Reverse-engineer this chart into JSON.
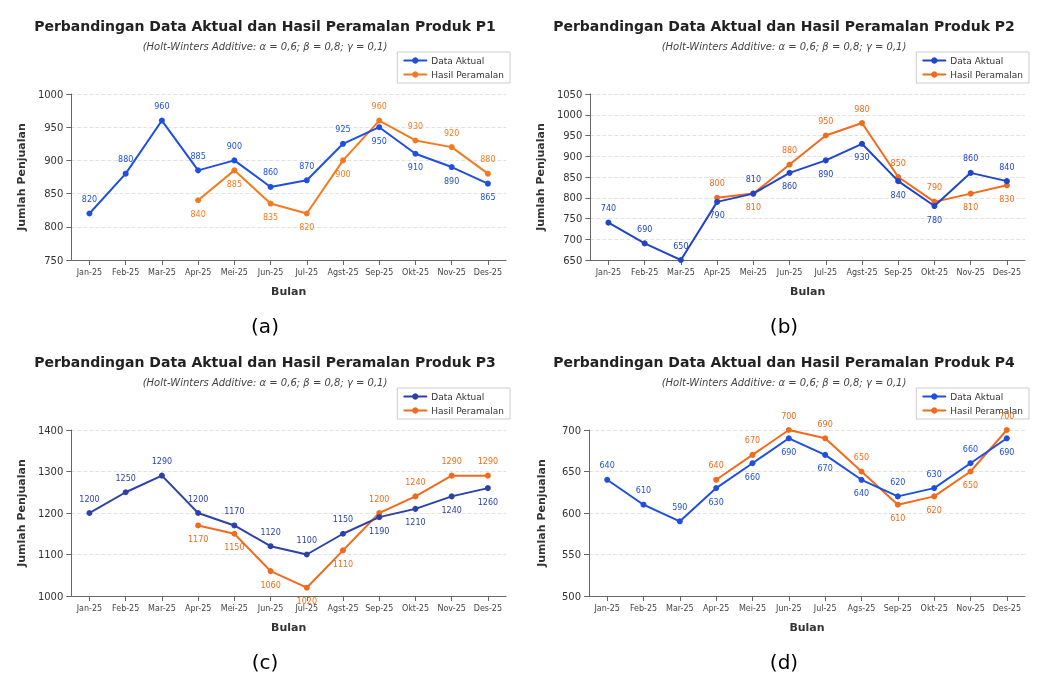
{
  "chart_data": [
    {
      "type": "line",
      "title": "Perbandingan Data Aktual dan Hasil Peramalan Produk P1",
      "subtitle": "(Holt-Winters Additive: α = 0,6; β = 0,8; γ = 0,1)",
      "xlabel": "Bulan",
      "ylabel": "Jumlah Penjualan",
      "annotations": [
        "(a)"
      ],
      "categories": [
        "Jan-25",
        "Feb-25",
        "Mar-25",
        "Apr-25",
        "Mei-25",
        "Jun-25",
        "Jul-25",
        "Agst-25",
        "Sep-25",
        "Okt-25",
        "Nov-25",
        "Des-25"
      ],
      "series": [
        {
          "name": "Data Aktual",
          "color": "#1f4fe0",
          "values": [
            820,
            880,
            960,
            885,
            900,
            860,
            870,
            925,
            950,
            910,
            890,
            865
          ]
        },
        {
          "name": "Hasil Peramalan",
          "color": "#f57a1f",
          "values": [
            null,
            null,
            null,
            840,
            885,
            835,
            820,
            900,
            960,
            930,
            920,
            880
          ]
        }
      ],
      "ylim": [
        750,
        1000
      ],
      "yticks": [
        750,
        800,
        850,
        900,
        950,
        1000
      ],
      "grid": "y",
      "legend": "top right",
      "marker": "circle",
      "line_style": "solid",
      "data_labels": true
    },
    {
      "type": "line",
      "title": "Perbandingan Data Aktual dan Hasil Peramalan Produk P2",
      "subtitle": "(Holt-Winters Additive: α = 0,6; β = 0,8; γ = 0,1)",
      "xlabel": "Bulan",
      "ylabel": "Jumlah Penjualan",
      "annotations": [
        "(b)"
      ],
      "categories": [
        "Jan-25",
        "Feb-25",
        "Mar-25",
        "Apr-25",
        "Mei-25",
        "Jun-25",
        "Jul-25",
        "Agst-25",
        "Sep-25",
        "Okt-25",
        "Nov-25",
        "Des-25"
      ],
      "series": [
        {
          "name": "Data Aktual",
          "color": "#1f45c8",
          "values": [
            740,
            690,
            650,
            790,
            810,
            860,
            890,
            930,
            840,
            780,
            860,
            840
          ]
        },
        {
          "name": "Hasil Peramalan",
          "color": "#f26a1b",
          "values": [
            null,
            null,
            null,
            800,
            810,
            880,
            950,
            980,
            850,
            790,
            810,
            830
          ]
        }
      ],
      "ylim": [
        650,
        1050
      ],
      "yticks": [
        650,
        700,
        750,
        800,
        850,
        900,
        950,
        1000,
        1050
      ],
      "grid": "y",
      "legend": "top right",
      "marker": "circle",
      "line_style": "solid",
      "data_labels": true
    },
    {
      "type": "line",
      "title": "Perbandingan Data Aktual dan Hasil Peramalan Produk P3",
      "subtitle": "(Holt-Winters Additive: α = 0,6; β = 0,8; γ = 0,1)",
      "xlabel": "Bulan",
      "ylabel": "Jumlah Penjualan",
      "annotations": [
        "(c)"
      ],
      "categories": [
        "Jan-25",
        "Feb-25",
        "Mar-25",
        "Apr-25",
        "Mei-25",
        "Jun-25",
        "Jul-25",
        "Agst-25",
        "Sep-25",
        "Okt-25",
        "Nov-25",
        "Des-25"
      ],
      "series": [
        {
          "name": "Data Aktual",
          "color": "#2d42a8",
          "values": [
            1200,
            1250,
            1290,
            1200,
            1170,
            1120,
            1100,
            1150,
            1190,
            1210,
            1240,
            1260
          ]
        },
        {
          "name": "Hasil Peramalan",
          "color": "#f26a1b",
          "values": [
            null,
            null,
            null,
            1170,
            1150,
            1060,
            1020,
            1110,
            1200,
            1240,
            1290,
            1290
          ]
        }
      ],
      "ylim": [
        1000,
        1400
      ],
      "yticks": [
        1000,
        1100,
        1200,
        1300,
        1400
      ],
      "grid": "y",
      "legend": "top right",
      "marker": "circle",
      "line_style": "solid",
      "data_labels": true
    },
    {
      "type": "line",
      "title": "Perbandingan Data Aktual dan Hasil Peramalan Produk P4",
      "subtitle": "(Holt-Winters Additive: α = 0,6; β = 0,8; γ = 0,1)",
      "xlabel": "Bulan",
      "ylabel": "Jumlah Penjualan",
      "annotations": [
        "(d)"
      ],
      "categories": [
        "Jan-25",
        "Feb-25",
        "Mar-25",
        "Apr-25",
        "Mei-25",
        "Jun-25",
        "Jul-25",
        "Ags-25",
        "Sep-25",
        "Okt-25",
        "Nov-25",
        "Des-25"
      ],
      "series": [
        {
          "name": "Data Aktual",
          "color": "#1f4fe0",
          "values": [
            640,
            610,
            590,
            630,
            660,
            690,
            670,
            640,
            620,
            630,
            660,
            690
          ]
        },
        {
          "name": "Hasil Peramalan",
          "color": "#f26a1b",
          "values": [
            null,
            null,
            null,
            640,
            670,
            700,
            690,
            650,
            610,
            620,
            650,
            700
          ]
        }
      ],
      "ylim": [
        500,
        700
      ],
      "yticks": [
        500,
        550,
        600,
        650,
        700
      ],
      "grid": "y",
      "legend": "top right",
      "marker": "circle",
      "line_style": "solid",
      "data_labels": true
    }
  ]
}
